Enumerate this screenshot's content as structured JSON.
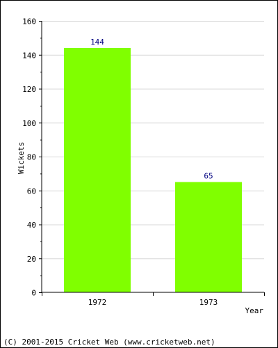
{
  "chart_data": {
    "type": "bar",
    "categories": [
      "1972",
      "1973"
    ],
    "values": [
      144,
      65
    ],
    "data_labels": [
      "144",
      "65"
    ],
    "xlabel": "Year",
    "ylabel": "Wickets",
    "ylim": [
      0,
      160
    ],
    "y_ticks": [
      0,
      20,
      40,
      60,
      80,
      100,
      120,
      140,
      160
    ],
    "y_tick_labels": [
      "0",
      "20",
      "40",
      "60",
      "80",
      "100",
      "120",
      "140",
      "160"
    ],
    "grid": true,
    "bar_color": "#80ff00",
    "value_label_color": "#000080"
  },
  "footer": {
    "copyright": "(C) 2001-2015 Cricket Web (www.cricketweb.net)"
  }
}
